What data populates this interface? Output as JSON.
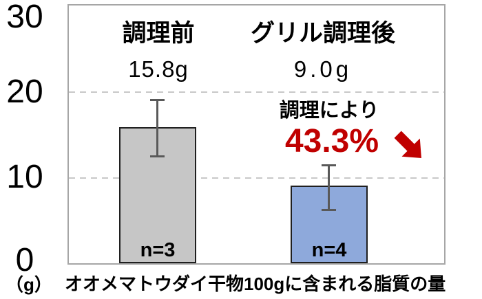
{
  "chart_data": {
    "type": "bar",
    "title": "オオメマトウダイ干物100gに含まれる脂質の量",
    "unit_label": "（g）",
    "ylim": [
      0,
      30
    ],
    "yticks": [
      {
        "value": 30,
        "label": "30"
      },
      {
        "value": 20,
        "label": "20"
      },
      {
        "value": 10,
        "label": "10"
      },
      {
        "value": 0,
        "label": "0"
      }
    ],
    "gridlines": [
      20,
      10
    ],
    "grid_style": "dashed-horizontal",
    "legend": "none",
    "categories": [
      "調理前",
      "グリル調理後"
    ],
    "bars": [
      {
        "category": "調理前",
        "value": 15.8,
        "value_label": "15.8g",
        "sample_size_label": "n=3",
        "error_high": 19.1,
        "error_low": 12.3,
        "fill_color": "#C6C6C6"
      },
      {
        "category": "グリル調理後",
        "value": 9.0,
        "value_label": "9.0g",
        "sample_size_label": "n=4",
        "error_high": 11.5,
        "error_low": 6.1,
        "fill_color": "#8EA9DB"
      }
    ],
    "annotation": {
      "line1": "調理により",
      "line2": "43.3%",
      "icon": "down-right-arrow",
      "color": "#C00000"
    }
  },
  "colors": {
    "background": "#FFFFFF",
    "text": "#000000",
    "bar_border": "#1F1F1F",
    "error_bar": "#595959",
    "gridline": "#C8C8C8",
    "plot_border": "#A6A6A6",
    "accent_red": "#C00000"
  }
}
